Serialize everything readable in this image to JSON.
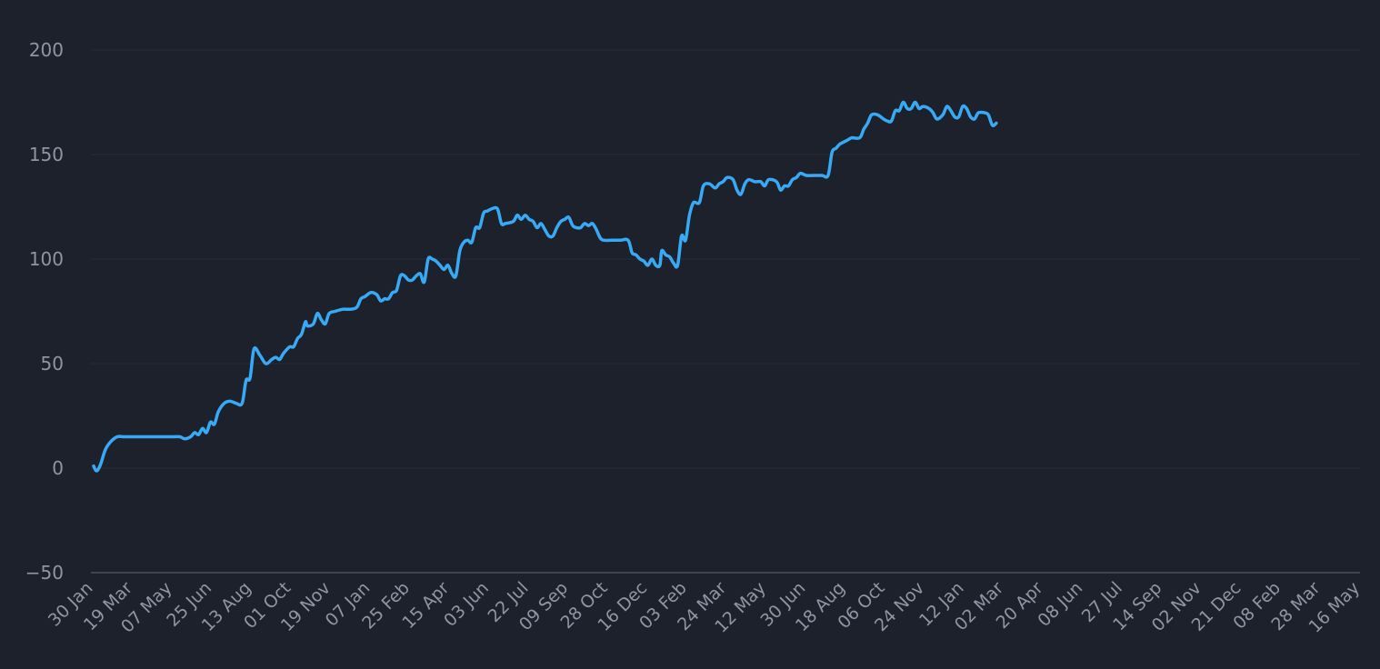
{
  "chart_data": {
    "type": "line",
    "title": "",
    "xlabel": "",
    "ylabel": "",
    "ylim": [
      -50,
      200
    ],
    "yticks": [
      -50,
      0,
      50,
      100,
      150,
      200
    ],
    "grid": true,
    "legend": "none",
    "x_tick_labels": [
      "30 Jan",
      "19 Mar",
      "07 May",
      "25 Jun",
      "13 Aug",
      "01 Oct",
      "19 Nov",
      "07 Jan",
      "25 Feb",
      "15 Apr",
      "03 Jun",
      "22 Jul",
      "09 Sep",
      "28 Oct",
      "16 Dec",
      "03 Feb",
      "24 Mar",
      "12 May",
      "30 Jun",
      "18 Aug",
      "06 Oct",
      "24 Nov",
      "12 Jan",
      "02 Mar",
      "20 Apr",
      "08 Jun",
      "27 Jul",
      "14 Sep",
      "02 Nov",
      "21 Dec",
      "08 Feb",
      "28 Mar",
      "16 May"
    ],
    "series": [
      {
        "color": "#38aaf5",
        "points": [
          [
            0,
            1
          ],
          [
            0.05,
            -1
          ],
          [
            0.1,
            -1
          ],
          [
            0.18,
            2
          ],
          [
            0.3,
            9
          ],
          [
            0.45,
            13
          ],
          [
            0.6,
            15
          ],
          [
            0.75,
            15
          ],
          [
            1,
            15
          ],
          [
            1.5,
            15
          ],
          [
            2,
            15
          ],
          [
            2.18,
            15
          ],
          [
            2.3,
            14
          ],
          [
            2.45,
            15
          ],
          [
            2.55,
            17
          ],
          [
            2.65,
            16
          ],
          [
            2.75,
            19
          ],
          [
            2.85,
            17
          ],
          [
            2.95,
            22
          ],
          [
            3.05,
            21
          ],
          [
            3.15,
            27
          ],
          [
            3.3,
            31
          ],
          [
            3.45,
            32
          ],
          [
            3.6,
            31
          ],
          [
            3.75,
            31
          ],
          [
            3.85,
            42
          ],
          [
            3.95,
            43
          ],
          [
            4.05,
            57
          ],
          [
            4.2,
            54
          ],
          [
            4.35,
            50
          ],
          [
            4.5,
            52
          ],
          [
            4.6,
            53
          ],
          [
            4.7,
            52
          ],
          [
            4.8,
            55
          ],
          [
            4.95,
            58
          ],
          [
            5.05,
            58
          ],
          [
            5.15,
            62
          ],
          [
            5.25,
            64
          ],
          [
            5.35,
            70
          ],
          [
            5.4,
            68
          ],
          [
            5.55,
            69
          ],
          [
            5.65,
            74
          ],
          [
            5.75,
            71
          ],
          [
            5.85,
            69
          ],
          [
            5.95,
            74
          ],
          [
            6.1,
            75
          ],
          [
            6.3,
            76
          ],
          [
            6.5,
            76
          ],
          [
            6.65,
            77
          ],
          [
            6.75,
            81
          ],
          [
            6.85,
            82
          ],
          [
            7,
            84
          ],
          [
            7.15,
            83
          ],
          [
            7.25,
            80
          ],
          [
            7.35,
            81
          ],
          [
            7.45,
            81
          ],
          [
            7.55,
            84
          ],
          [
            7.65,
            85
          ],
          [
            7.75,
            92
          ],
          [
            7.85,
            92
          ],
          [
            7.95,
            90
          ],
          [
            8.05,
            90
          ],
          [
            8.15,
            92
          ],
          [
            8.25,
            93
          ],
          [
            8.35,
            89
          ],
          [
            8.45,
            100
          ],
          [
            8.55,
            100
          ],
          [
            8.65,
            99
          ],
          [
            8.75,
            97
          ],
          [
            8.85,
            95
          ],
          [
            8.95,
            97
          ],
          [
            9.05,
            93
          ],
          [
            9.15,
            92
          ],
          [
            9.25,
            104
          ],
          [
            9.35,
            108
          ],
          [
            9.45,
            109
          ],
          [
            9.55,
            108
          ],
          [
            9.65,
            115
          ],
          [
            9.75,
            115
          ],
          [
            9.85,
            122
          ],
          [
            9.95,
            123
          ],
          [
            10.05,
            124
          ],
          [
            10.2,
            124
          ],
          [
            10.3,
            117
          ],
          [
            10.4,
            117
          ],
          [
            10.6,
            118
          ],
          [
            10.7,
            121
          ],
          [
            10.8,
            119
          ],
          [
            10.9,
            121
          ],
          [
            11,
            119
          ],
          [
            11.1,
            118
          ],
          [
            11.2,
            115
          ],
          [
            11.3,
            117
          ],
          [
            11.4,
            114
          ],
          [
            11.5,
            111
          ],
          [
            11.6,
            111
          ],
          [
            11.7,
            115
          ],
          [
            11.8,
            118
          ],
          [
            11.9,
            119
          ],
          [
            12,
            120
          ],
          [
            12.1,
            116
          ],
          [
            12.2,
            115
          ],
          [
            12.3,
            115
          ],
          [
            12.4,
            117
          ],
          [
            12.5,
            116
          ],
          [
            12.6,
            117
          ],
          [
            12.7,
            114
          ],
          [
            12.8,
            110
          ],
          [
            12.9,
            109
          ],
          [
            13.1,
            109
          ],
          [
            13.3,
            109
          ],
          [
            13.5,
            109
          ],
          [
            13.6,
            103
          ],
          [
            13.7,
            102
          ],
          [
            13.8,
            100
          ],
          [
            13.9,
            99
          ],
          [
            14,
            97
          ],
          [
            14.1,
            100
          ],
          [
            14.2,
            97
          ],
          [
            14.3,
            97
          ],
          [
            14.35,
            104
          ],
          [
            14.45,
            102
          ],
          [
            14.55,
            101
          ],
          [
            14.65,
            98
          ],
          [
            14.75,
            97
          ],
          [
            14.85,
            111
          ],
          [
            14.95,
            109
          ],
          [
            15.05,
            121
          ],
          [
            15.15,
            127
          ],
          [
            15.3,
            127
          ],
          [
            15.4,
            135
          ],
          [
            15.55,
            136
          ],
          [
            15.7,
            134
          ],
          [
            15.8,
            136
          ],
          [
            15.9,
            137
          ],
          [
            16,
            139
          ],
          [
            16.15,
            138
          ],
          [
            16.25,
            133
          ],
          [
            16.35,
            131
          ],
          [
            16.45,
            136
          ],
          [
            16.55,
            138
          ],
          [
            16.7,
            137
          ],
          [
            16.85,
            137
          ],
          [
            16.95,
            135
          ],
          [
            17.05,
            138
          ],
          [
            17.25,
            137
          ],
          [
            17.35,
            133
          ],
          [
            17.45,
            135
          ],
          [
            17.55,
            135
          ],
          [
            17.65,
            138
          ],
          [
            17.75,
            139
          ],
          [
            17.85,
            141
          ],
          [
            18,
            140
          ],
          [
            18.2,
            140
          ],
          [
            18.4,
            140
          ],
          [
            18.55,
            140
          ],
          [
            18.65,
            151
          ],
          [
            18.75,
            153
          ],
          [
            18.85,
            155
          ],
          [
            18.95,
            156
          ],
          [
            19.05,
            157
          ],
          [
            19.15,
            158
          ],
          [
            19.35,
            158
          ],
          [
            19.45,
            162
          ],
          [
            19.55,
            165
          ],
          [
            19.65,
            169
          ],
          [
            19.8,
            169
          ],
          [
            19.95,
            167
          ],
          [
            20.05,
            166
          ],
          [
            20.15,
            166
          ],
          [
            20.25,
            171
          ],
          [
            20.35,
            171
          ],
          [
            20.45,
            175
          ],
          [
            20.55,
            172
          ],
          [
            20.65,
            172
          ],
          [
            20.75,
            175
          ],
          [
            20.85,
            172
          ],
          [
            20.95,
            173
          ],
          [
            21.1,
            172
          ],
          [
            21.2,
            170
          ],
          [
            21.3,
            167
          ],
          [
            21.45,
            169
          ],
          [
            21.55,
            173
          ],
          [
            21.65,
            171
          ],
          [
            21.75,
            168
          ],
          [
            21.85,
            168
          ],
          [
            21.95,
            173
          ],
          [
            22.05,
            172
          ],
          [
            22.15,
            168
          ],
          [
            22.25,
            167
          ],
          [
            22.35,
            170
          ],
          [
            22.5,
            170
          ],
          [
            22.6,
            169
          ],
          [
            22.7,
            164
          ],
          [
            22.8,
            165
          ]
        ]
      }
    ]
  }
}
